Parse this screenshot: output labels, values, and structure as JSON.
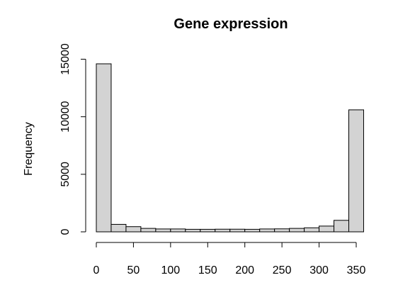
{
  "chart_data": {
    "type": "bar",
    "title": "Gene expression",
    "xlabel": "",
    "ylabel": "Frequency",
    "bin_width": 20,
    "bins": [
      {
        "from": 0,
        "to": 20,
        "count": 14600
      },
      {
        "from": 20,
        "to": 40,
        "count": 650
      },
      {
        "from": 40,
        "to": 60,
        "count": 450
      },
      {
        "from": 60,
        "to": 80,
        "count": 300
      },
      {
        "from": 80,
        "to": 100,
        "count": 250
      },
      {
        "from": 100,
        "to": 120,
        "count": 250
      },
      {
        "from": 120,
        "to": 140,
        "count": 220
      },
      {
        "from": 140,
        "to": 160,
        "count": 220
      },
      {
        "from": 160,
        "to": 180,
        "count": 230
      },
      {
        "from": 180,
        "to": 200,
        "count": 230
      },
      {
        "from": 200,
        "to": 220,
        "count": 220
      },
      {
        "from": 220,
        "to": 240,
        "count": 250
      },
      {
        "from": 240,
        "to": 260,
        "count": 260
      },
      {
        "from": 260,
        "to": 280,
        "count": 300
      },
      {
        "from": 280,
        "to": 300,
        "count": 350
      },
      {
        "from": 300,
        "to": 320,
        "count": 500
      },
      {
        "from": 320,
        "to": 340,
        "count": 1000
      },
      {
        "from": 340,
        "to": 360,
        "count": 10600
      }
    ],
    "x_ticks": [
      0,
      50,
      100,
      150,
      200,
      250,
      300,
      350
    ],
    "y_ticks": [
      0,
      5000,
      10000,
      15000
    ],
    "x_tick_labels": [
      "0",
      "50",
      "100",
      "150",
      "200",
      "250",
      "300",
      "350"
    ],
    "y_tick_labels": [
      "0",
      "5000",
      "10000",
      "15000"
    ],
    "xlim": [
      0,
      360
    ],
    "ylim": [
      0,
      15000
    ],
    "bar_color": "#d3d3d3",
    "grid": false,
    "legend": "none"
  }
}
